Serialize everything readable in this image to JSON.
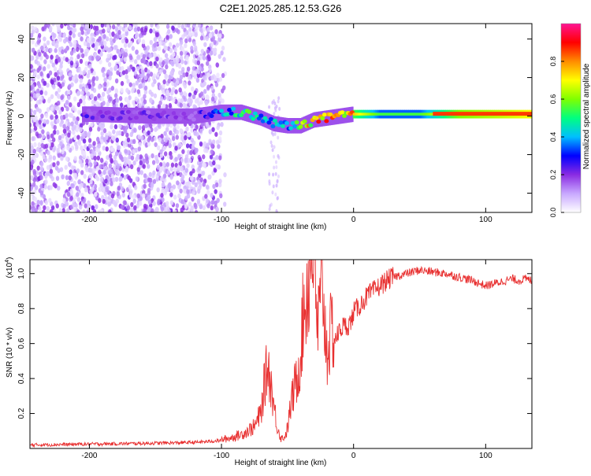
{
  "chart_data": [
    {
      "type": "heatmap",
      "title": "C2E1.2025.285.12.53.G26",
      "xlabel": "Height of straight line (km)",
      "ylabel": "Frequency (Hz)",
      "xlim": [
        -245,
        135
      ],
      "ylim": [
        -50,
        48
      ],
      "x_ticks": [
        -200,
        -100,
        0,
        100
      ],
      "y_ticks": [
        -40,
        -20,
        0,
        20,
        40
      ],
      "colorbar": {
        "label": "Normalized spectral amplitude",
        "range": [
          0,
          1
        ],
        "ticks": [
          "0.0",
          "0.2",
          "0.4",
          "0.6",
          "0.8"
        ],
        "colors": [
          "#ffffff",
          "#c8a8ff",
          "#8a2be2",
          "#0000ff",
          "#00bfff",
          "#00ff80",
          "#7fff00",
          "#ffff00",
          "#ff8c00",
          "#ff0000",
          "#ff1493"
        ]
      },
      "ridge": {
        "description_points_x_km": [
          -200,
          -150,
          -120,
          -100,
          -85,
          -70,
          -60,
          -50,
          -40,
          -30,
          -20,
          -10,
          0,
          20,
          50,
          80,
          110,
          135
        ],
        "frequency_hz": [
          1,
          0,
          0,
          2,
          2,
          -1,
          -4,
          -5,
          -5,
          -2,
          -1,
          0,
          1,
          1,
          1,
          1,
          1,
          1
        ],
        "amplitude": [
          0.22,
          0.2,
          0.2,
          0.35,
          0.5,
          0.45,
          0.4,
          0.4,
          0.6,
          0.8,
          0.9,
          0.85,
          0.75,
          0.55,
          0.55,
          0.8,
          0.85,
          0.9
        ]
      }
    },
    {
      "type": "line",
      "xlabel": "Height of straight line (km)",
      "ylabel": "SNR (10 * v/v)",
      "scale_label": "(x10",
      "scale_exponent": "4",
      "xlim": [
        -245,
        135
      ],
      "ylim": [
        0,
        1.08
      ],
      "x_ticks": [
        -200,
        -100,
        0,
        100
      ],
      "y_ticks": [
        0.2,
        0.4,
        0.6,
        0.8,
        1.0
      ],
      "series": [
        {
          "name": "SNR",
          "color": "#e83030",
          "x": [
            -245,
            -200,
            -150,
            -120,
            -110,
            -100,
            -95,
            -90,
            -85,
            -80,
            -75,
            -70,
            -68,
            -65,
            -63,
            -60,
            -58,
            -55,
            -52,
            -50,
            -48,
            -45,
            -42,
            -40,
            -38,
            -35,
            -33,
            -30,
            -28,
            -25,
            -23,
            -22,
            -20,
            -18,
            -15,
            -12,
            -10,
            -8,
            -5,
            -2,
            0,
            5,
            10,
            15,
            20,
            25,
            30,
            40,
            50,
            60,
            70,
            80,
            90,
            100,
            110,
            120,
            125,
            130,
            135
          ],
          "y": [
            0.02,
            0.025,
            0.03,
            0.035,
            0.04,
            0.045,
            0.05,
            0.06,
            0.07,
            0.09,
            0.11,
            0.18,
            0.3,
            0.42,
            0.35,
            0.2,
            0.12,
            0.05,
            0.06,
            0.1,
            0.2,
            0.3,
            0.38,
            0.5,
            0.68,
            0.82,
            0.9,
            1.08,
            0.6,
            0.7,
            0.85,
            0.62,
            0.5,
            0.55,
            0.62,
            0.65,
            0.68,
            0.7,
            0.7,
            0.72,
            0.78,
            0.82,
            0.87,
            0.9,
            0.93,
            0.96,
            0.98,
            1.0,
            1.02,
            1.01,
            1.0,
            0.98,
            0.96,
            0.93,
            0.95,
            0.97,
            0.96,
            0.97,
            0.96
          ]
        }
      ]
    }
  ]
}
